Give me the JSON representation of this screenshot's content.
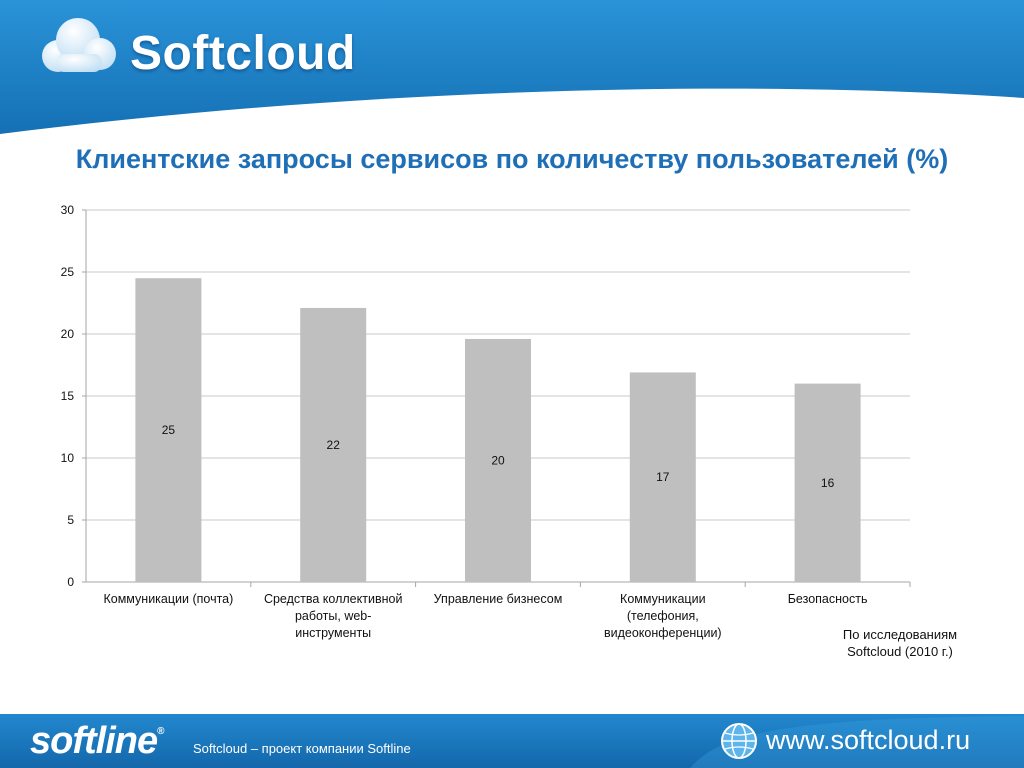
{
  "header": {
    "brand": "Softcloud"
  },
  "slide": {
    "title": "Клиентские запросы сервисов по количеству пользователей (%)",
    "footnote": "По исследованиям\nSoftcloud (2010  г.)"
  },
  "chart_data": {
    "type": "bar",
    "title": "Клиентские запросы сервисов по количеству пользователей (%)",
    "categories": [
      [
        "Коммуникации (почта)"
      ],
      [
        "Средства коллективной",
        "работы, web-",
        "инструменты"
      ],
      [
        "Управление бизнесом"
      ],
      [
        "Коммуникации",
        "(телефония,",
        "видеоконференции)"
      ],
      [
        "Безопасность"
      ]
    ],
    "values": [
      24.5,
      22.1,
      19.6,
      16.9,
      16.0
    ],
    "data_labels": [
      "25",
      "22",
      "20",
      "17",
      "16"
    ],
    "ylim": [
      0,
      30
    ],
    "yticks": [
      0,
      5,
      10,
      15,
      20,
      25,
      30
    ],
    "grid": true,
    "bar_color": "#bfbfbf"
  },
  "footer": {
    "logo": "softline",
    "logo_mark": "®",
    "tagline": "Softcloud – проект компании Softline",
    "website": "www.softcloud.ru"
  },
  "colors": {
    "header_blue": "#1b7fc6",
    "title_blue": "#1f6fb7",
    "footer_blue": "#1a78c0"
  },
  "icons": {
    "header_logo": "cloud-icon",
    "footer_site": "globe-icon"
  }
}
